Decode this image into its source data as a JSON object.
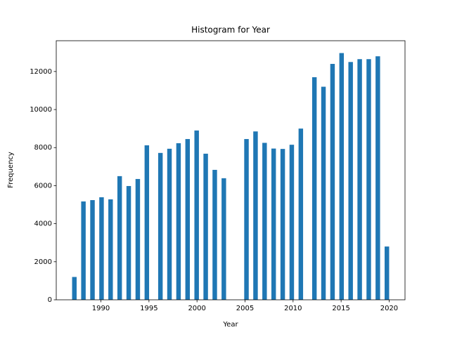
{
  "chart_data": {
    "type": "histogram",
    "title": "Histogram for Year",
    "x_label": "Year",
    "y_label": "Frequency",
    "color": "#1f77b4",
    "bins": [
      1987,
      1987.4714,
      1987.9429,
      1988.4143,
      1988.8857,
      1989.3571,
      1989.8286,
      1990.3,
      1990.7714,
      1991.2429,
      1991.7143,
      1992.1857,
      1992.6571,
      1993.1286,
      1993.6,
      1994.0714,
      1994.5429,
      1995.0143,
      1995.4857,
      1995.9571,
      1996.4286,
      1996.9,
      1997.3714,
      1997.8429,
      1998.3143,
      1998.7857,
      1999.2571,
      1999.7286,
      2000.2,
      2000.6714,
      2001.1429,
      2001.6143,
      2002.0857,
      2002.5571,
      2003.0286,
      2003.5,
      2003.9714,
      2004.4429,
      2004.9143,
      2005.3857,
      2005.8571,
      2006.3286,
      2006.8,
      2007.2714,
      2007.7429,
      2008.2143,
      2008.6857,
      2009.1571,
      2009.6286,
      2010.1,
      2010.5714,
      2011.0429,
      2011.5143,
      2011.9857,
      2012.4571,
      2012.9286,
      2013.4,
      2013.8714,
      2014.3429,
      2014.8143,
      2015.2857,
      2015.7571,
      2016.2286,
      2016.7,
      2017.1714,
      2017.6429,
      2018.1143,
      2018.5857,
      2019.0571,
      2019.5286,
      2020
    ],
    "values": [
      1200,
      0,
      5170,
      0,
      5240,
      0,
      5390,
      0,
      5280,
      0,
      6500,
      0,
      5980,
      0,
      6350,
      0,
      8120,
      0,
      0,
      7720,
      0,
      7940,
      0,
      8230,
      0,
      8450,
      0,
      8900,
      0,
      7680,
      0,
      6830,
      0,
      6390,
      0,
      0,
      0,
      0,
      8450,
      0,
      8850,
      0,
      8250,
      0,
      7950,
      0,
      7930,
      0,
      8150,
      0,
      9000,
      0,
      0,
      11700,
      0,
      11200,
      0,
      12400,
      0,
      12970,
      0,
      12500,
      0,
      12650,
      0,
      12650,
      0,
      12800,
      0,
      2800
    ],
    "xlim": [
      1985.35,
      2021.65
    ],
    "xticks": [
      1990,
      1995,
      2000,
      2005,
      2010,
      2015,
      2020
    ],
    "ylim": [
      0,
      13618.5
    ],
    "yticks": [
      0,
      2000,
      4000,
      6000,
      8000,
      10000,
      12000
    ]
  }
}
